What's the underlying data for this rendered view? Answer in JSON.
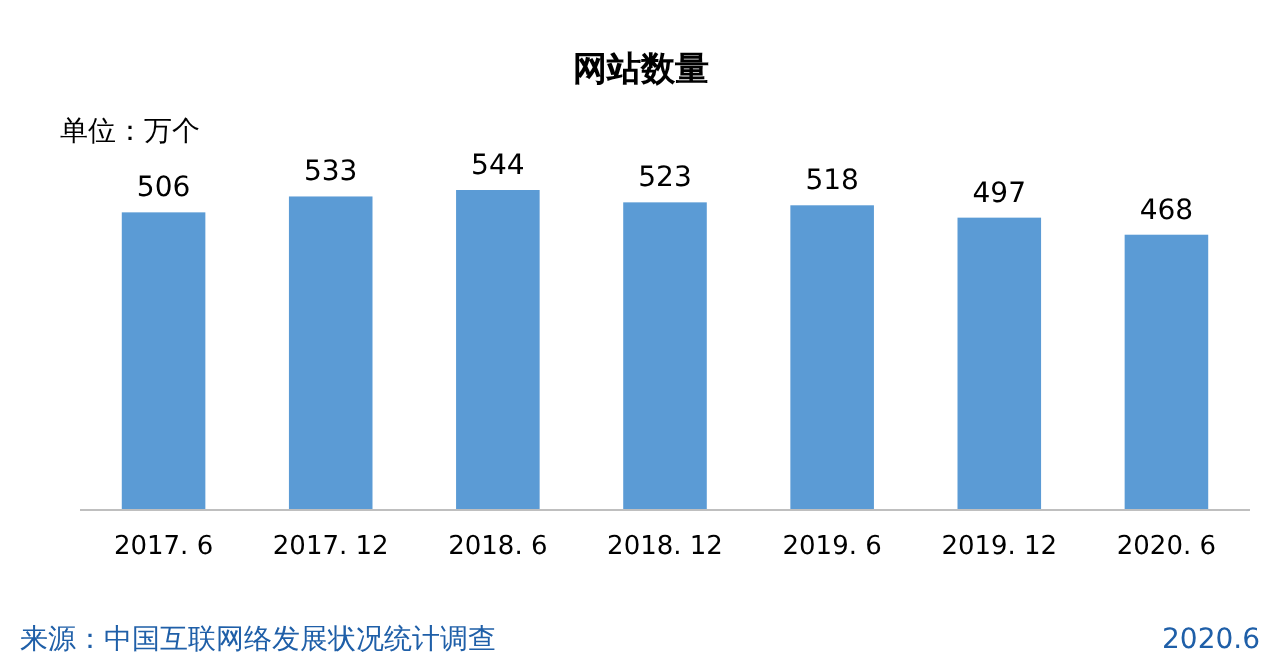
{
  "chart_data": {
    "type": "bar",
    "title": "网站数量",
    "categories": [
      "2017. 6",
      "2017. 12",
      "2018. 6",
      "2018. 12",
      "2019. 6",
      "2019. 12",
      "2020. 6"
    ],
    "values": [
      506,
      533,
      544,
      523,
      518,
      497,
      468
    ],
    "color": "#5b9bd5",
    "data_labels": true,
    "annotations": [
      "单位：万个",
      "来源：中国互联网络发展状况统计调查",
      "2020.6"
    ]
  }
}
